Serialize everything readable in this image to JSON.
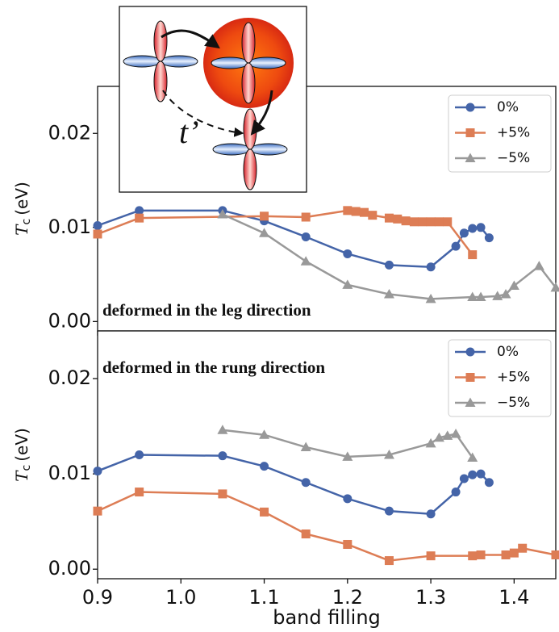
{
  "chart_data": [
    {
      "type": "line",
      "annotation": "deformed in the leg direction",
      "ylabel": {
        "symbol": "T",
        "subscript": "c",
        "unit": "(eV)"
      },
      "xlim": [
        0.9,
        1.45
      ],
      "ylim": [
        -0.001,
        0.025
      ],
      "xticks": [
        0.9,
        1,
        1.1,
        1.2,
        1.3,
        1.4
      ],
      "yticks": [
        {
          "value": 0,
          "label": "0.00"
        },
        {
          "value": 0.01,
          "label": "0.01"
        },
        {
          "value": 0.02,
          "label": "0.02"
        }
      ],
      "legend": "upper right",
      "series": [
        {
          "name": "0%",
          "color": "#4464a8",
          "marker": "o",
          "x": [
            0.9,
            0.95,
            1.05,
            1.1,
            1.15,
            1.2,
            1.25,
            1.3,
            1.33,
            1.34,
            1.35,
            1.36,
            1.37
          ],
          "values": [
            0.0102,
            0.0118,
            0.0118,
            0.0107,
            0.009,
            0.0072,
            0.006,
            0.0058,
            0.008,
            0.0094,
            0.0099,
            0.01,
            0.0089
          ]
        },
        {
          "name": "+5%",
          "color": "#dd7d55",
          "marker": "s",
          "x": [
            0.9,
            0.95,
            1.1,
            1.15,
            1.2,
            1.21,
            1.22,
            1.23,
            1.25,
            1.26,
            1.27,
            1.28,
            1.29,
            1.3,
            1.31,
            1.32,
            1.35
          ],
          "values": [
            0.0093,
            0.011,
            0.0112,
            0.0111,
            0.0118,
            0.0117,
            0.0116,
            0.0113,
            0.011,
            0.0109,
            0.0107,
            0.0106,
            0.0106,
            0.0106,
            0.0106,
            0.0106,
            0.0071
          ]
        },
        {
          "name": "−5%",
          "color": "#999999",
          "marker": "^",
          "x": [
            1.05,
            1.1,
            1.15,
            1.2,
            1.25,
            1.3,
            1.35,
            1.36,
            1.38,
            1.39,
            1.4,
            1.43,
            1.45
          ],
          "values": [
            0.0114,
            0.0094,
            0.0064,
            0.0039,
            0.0029,
            0.0024,
            0.0026,
            0.0026,
            0.0027,
            0.0029,
            0.0038,
            0.0059,
            0.0036
          ]
        }
      ]
    },
    {
      "type": "line",
      "annotation": "deformed in the rung direction",
      "ylabel": {
        "symbol": "T",
        "subscript": "c",
        "unit": "(eV)"
      },
      "xlabel": "band filling",
      "xlim": [
        0.9,
        1.45
      ],
      "ylim": [
        -0.001,
        0.025
      ],
      "xticks": [
        0.9,
        {
          "value": 1.0,
          "label": "1.0"
        },
        1.1,
        1.2,
        1.3,
        1.4
      ],
      "yticks": [
        {
          "value": 0,
          "label": "0.00"
        },
        {
          "value": 0.01,
          "label": "0.01"
        },
        {
          "value": 0.02,
          "label": "0.02"
        }
      ],
      "legend": "upper right",
      "series": [
        {
          "name": "0%",
          "color": "#4464a8",
          "marker": "o",
          "x": [
            0.9,
            0.95,
            1.05,
            1.1,
            1.15,
            1.2,
            1.25,
            1.3,
            1.33,
            1.34,
            1.35,
            1.36,
            1.37
          ],
          "values": [
            0.0103,
            0.012,
            0.0119,
            0.0108,
            0.0091,
            0.0074,
            0.0061,
            0.0058,
            0.0081,
            0.0095,
            0.0099,
            0.01,
            0.0091
          ]
        },
        {
          "name": "+5%",
          "color": "#dd7d55",
          "marker": "s",
          "x": [
            0.9,
            0.95,
            1.05,
            1.1,
            1.15,
            1.2,
            1.25,
            1.3,
            1.35,
            1.36,
            1.39,
            1.4,
            1.41,
            1.45
          ],
          "values": [
            0.0061,
            0.0081,
            0.0079,
            0.006,
            0.0037,
            0.0026,
            0.0009,
            0.0014,
            0.0014,
            0.0015,
            0.0015,
            0.0017,
            0.0022,
            0.0015
          ]
        },
        {
          "name": "−5%",
          "color": "#999999",
          "marker": "^",
          "x": [
            1.05,
            1.1,
            1.15,
            1.2,
            1.25,
            1.3,
            1.31,
            1.32,
            1.33,
            1.35
          ],
          "values": [
            0.0146,
            0.0141,
            0.0128,
            0.0118,
            0.012,
            0.0132,
            0.0138,
            0.014,
            0.0142,
            0.0117
          ]
        }
      ]
    }
  ],
  "inset": {
    "label": "t’"
  }
}
